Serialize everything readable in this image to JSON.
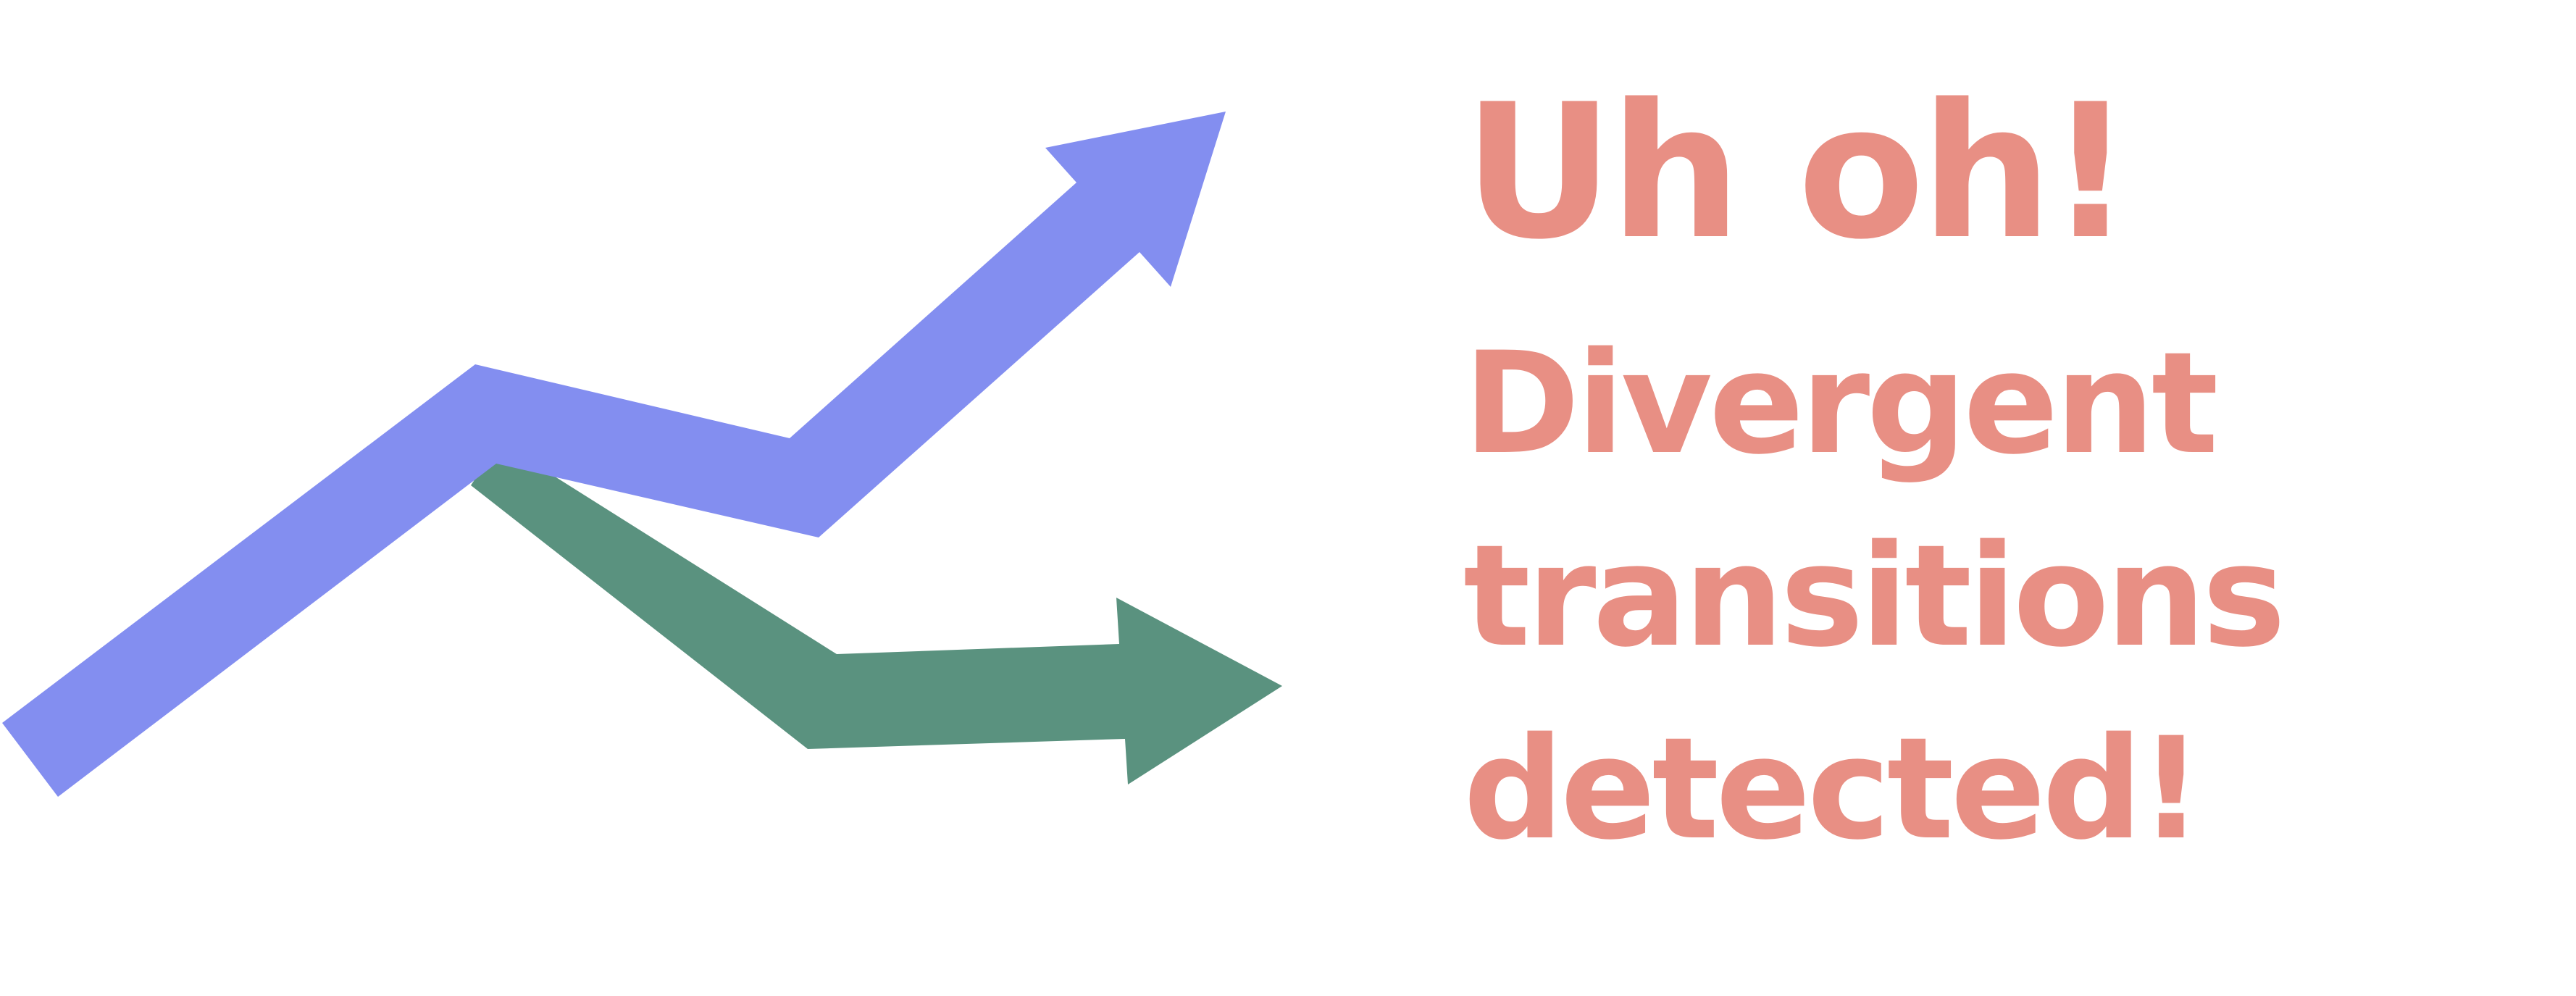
{
  "headline": {
    "title": "Uh oh!",
    "lines": [
      "Divergent",
      "transitions",
      "detected!"
    ]
  },
  "arrows": [
    {
      "icon": "green-arrow-icon",
      "color": "#5a927f"
    },
    {
      "icon": "blue-arrow-icon",
      "color": "#838ef0"
    }
  ],
  "colors": {
    "text": "#e88f84",
    "background": "#ffffff"
  }
}
